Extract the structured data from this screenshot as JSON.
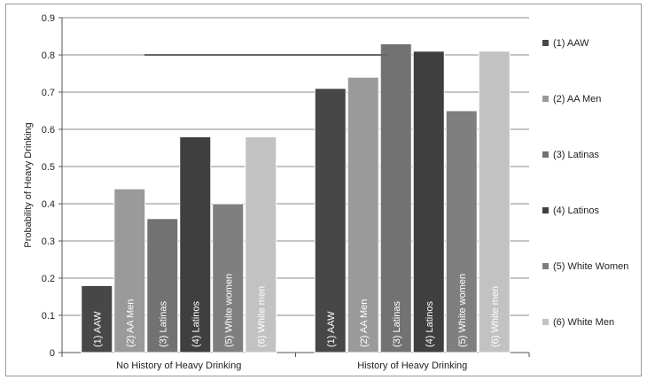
{
  "chart_data": {
    "type": "bar",
    "title": "",
    "xlabel": "",
    "ylabel": "Probability of Heavy Drinking",
    "ylim": [
      0,
      0.9
    ],
    "yticks": [
      "0",
      "0.1",
      "0.2",
      "0.3",
      "0.4",
      "0.5",
      "0.6",
      "0.7",
      "0.8",
      "0.9"
    ],
    "grid": true,
    "legend_position": "right",
    "categories": [
      "No History of Heavy Drinking",
      "History of Heavy Drinking"
    ],
    "series": [
      {
        "name": "(1) AAW",
        "bar_label": "(1) AAW",
        "color": "#474747",
        "values": [
          0.18,
          0.71
        ]
      },
      {
        "name": "(2) AA Men",
        "bar_label": "(2) AA Men",
        "color": "#9a9a9a",
        "values": [
          0.44,
          0.74
        ]
      },
      {
        "name": "(3) Latinas",
        "bar_label": "(3) Latinas",
        "color": "#727272",
        "values": [
          0.36,
          0.83
        ]
      },
      {
        "name": "(4) Latinos",
        "bar_label": "(4) Latinos",
        "color": "#3f3f3f",
        "values": [
          0.58,
          0.81
        ]
      },
      {
        "name": "(5) White Women",
        "bar_label": "(5) White women",
        "color": "#7f7f7f",
        "values": [
          0.4,
          0.65
        ]
      },
      {
        "name": "(6) White Men",
        "bar_label": "(6) White men",
        "color": "#c2c2c2",
        "values": [
          0.58,
          0.81
        ]
      }
    ],
    "reference_line": {
      "y": 0.8,
      "color": "#666666"
    }
  }
}
